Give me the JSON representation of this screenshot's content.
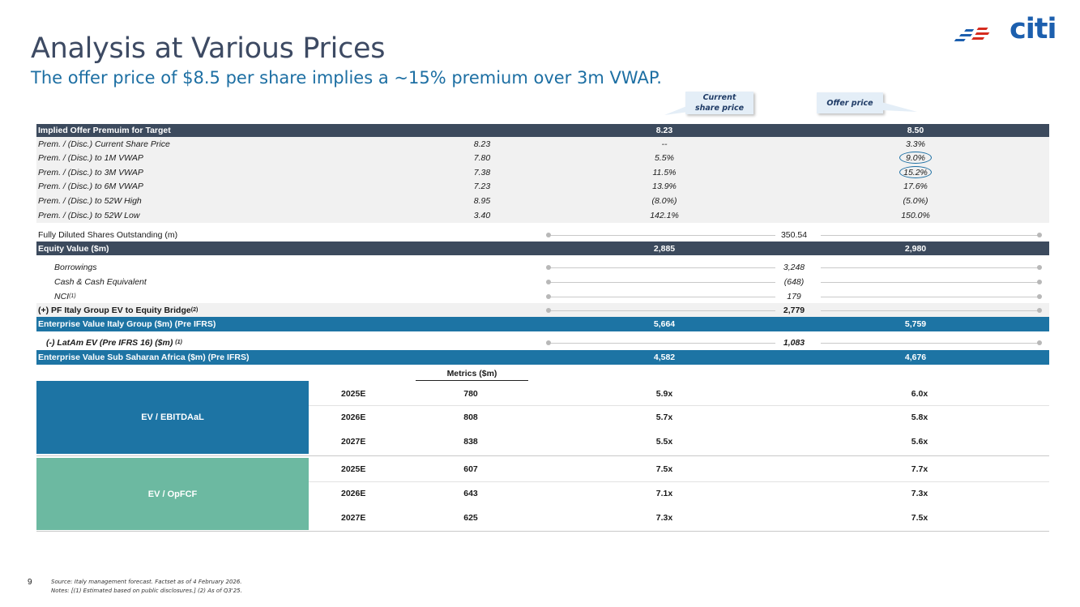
{
  "header": {
    "title": "Analysis at Various Prices",
    "subtitle": "The offer price of $8.5 per share implies a ~15% premium over 3m VWAP.",
    "logo_text": "citi"
  },
  "callouts": {
    "current_line1": "Current",
    "current_line2": "share price",
    "offer": "Offer price"
  },
  "premium_table": {
    "header_label": "Implied Offer Premuim for Target",
    "header_current": "8.23",
    "header_offer": "8.50",
    "rows": [
      {
        "label": "Prem. / (Disc.) Current Share Price",
        "ref": "8.23",
        "current": "--",
        "offer": "3.3%"
      },
      {
        "label": "Prem. / (Disc.) to 1M VWAP",
        "ref": "7.80",
        "current": "5.5%",
        "offer": "9.0%"
      },
      {
        "label": "Prem. / (Disc.) to 3M VWAP",
        "ref": "7.38",
        "current": "11.5%",
        "offer": "15.2%"
      },
      {
        "label": "Prem. / (Disc.) to 6M VWAP",
        "ref": "7.23",
        "current": "13.9%",
        "offer": "17.6%"
      },
      {
        "label": "Prem. / (Disc.) to 52W High",
        "ref": "8.95",
        "current": "(8.0%)",
        "offer": "(5.0%)"
      },
      {
        "label": "Prem. / (Disc.) to 52W Low",
        "ref": "3.40",
        "current": "142.1%",
        "offer": "150.0%"
      }
    ]
  },
  "bridge": {
    "fdso_label": "Fully Diluted Shares Outstanding (m)",
    "fdso_value": "350.54",
    "equity_label": "Equity Value ($m)",
    "equity_current": "2,885",
    "equity_offer": "2,980",
    "borrowings_label": "Borrowings",
    "borrowings_value": "3,248",
    "cash_label": "Cash & Cash Equivalent",
    "cash_value": "(648)",
    "nci_label": "NCI",
    "nci_sup": "(1)",
    "nci_value": "179",
    "bridge_label": "(+) PF Italy Group EV to Equity Bridge",
    "bridge_sup": "(2)",
    "bridge_value": "2,779",
    "ev_italy_label": "Enterprise Value Italy Group ($m) (Pre IFRS)",
    "ev_italy_current": "5,664",
    "ev_italy_offer": "5,759",
    "latam_label": "(-) LatAm EV (Pre IFRS 16) ($m)",
    "latam_sup": "(1)",
    "latam_value": "1,083",
    "ev_ssa_label": "Enterprise Value Sub Saharan Africa ($m) (Pre IFRS)",
    "ev_ssa_current": "4,582",
    "ev_ssa_offer": "4,676"
  },
  "multiples": {
    "metrics_header": "Metrics ($m)",
    "ebitdaal": {
      "label": "EV / EBITDAaL",
      "color": "#1d74a4",
      "rows": [
        {
          "year": "2025E",
          "metric": "780",
          "current": "5.9x",
          "offer": "6.0x"
        },
        {
          "year": "2026E",
          "metric": "808",
          "current": "5.7x",
          "offer": "5.8x"
        },
        {
          "year": "2027E",
          "metric": "838",
          "current": "5.5x",
          "offer": "5.6x"
        }
      ]
    },
    "opfcf": {
      "label": "EV / OpFCF",
      "color": "#6cb9a1",
      "rows": [
        {
          "year": "2025E",
          "metric": "607",
          "current": "7.5x",
          "offer": "7.7x"
        },
        {
          "year": "2026E",
          "metric": "643",
          "current": "7.1x",
          "offer": "7.3x"
        },
        {
          "year": "2027E",
          "metric": "625",
          "current": "7.3x",
          "offer": "7.5x"
        }
      ]
    }
  },
  "footer": {
    "page_number": "9",
    "source": "Source: Italy management forecast. Factset as of 4 February 2026.",
    "notes": "Notes: [(1) Estimated based on public disclosures.] (2) As of Q3'25."
  }
}
